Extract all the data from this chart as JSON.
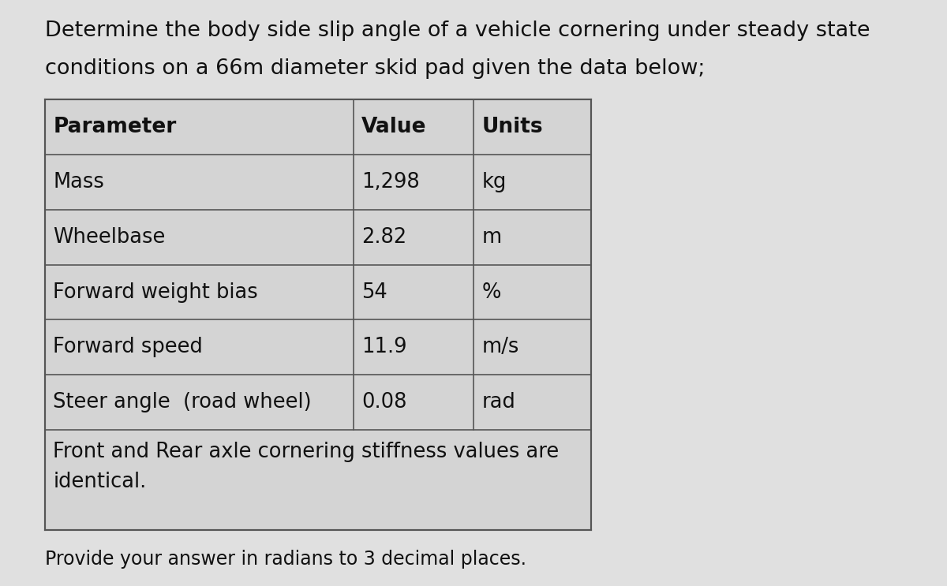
{
  "title_line1": "Determine the body side slip angle of a vehicle cornering under steady state",
  "title_line2": "conditions on a 66m diameter skid pad given the data below;",
  "table_headers": [
    "Parameter",
    "Value",
    "Units"
  ],
  "table_rows": [
    [
      "Mass",
      "1,298",
      "kg"
    ],
    [
      "Wheelbase",
      "2.82",
      "m"
    ],
    [
      "Forward weight bias",
      "54",
      "%"
    ],
    [
      "Forward speed",
      "11.9",
      "m/s"
    ],
    [
      "Steer angle  (road wheel)",
      "0.08",
      "rad"
    ],
    [
      "Front and Rear axle cornering stiffness values are\nidentical.",
      "",
      ""
    ]
  ],
  "footer": "Provide your answer in radians to 3 decimal places.",
  "bg_color": "#e0e0e0",
  "table_bg": "#d4d4d4",
  "text_color": "#111111",
  "border_color": "#555555",
  "title_fontsize": 19.5,
  "header_fontsize": 19,
  "cell_fontsize": 18.5,
  "footer_fontsize": 17
}
